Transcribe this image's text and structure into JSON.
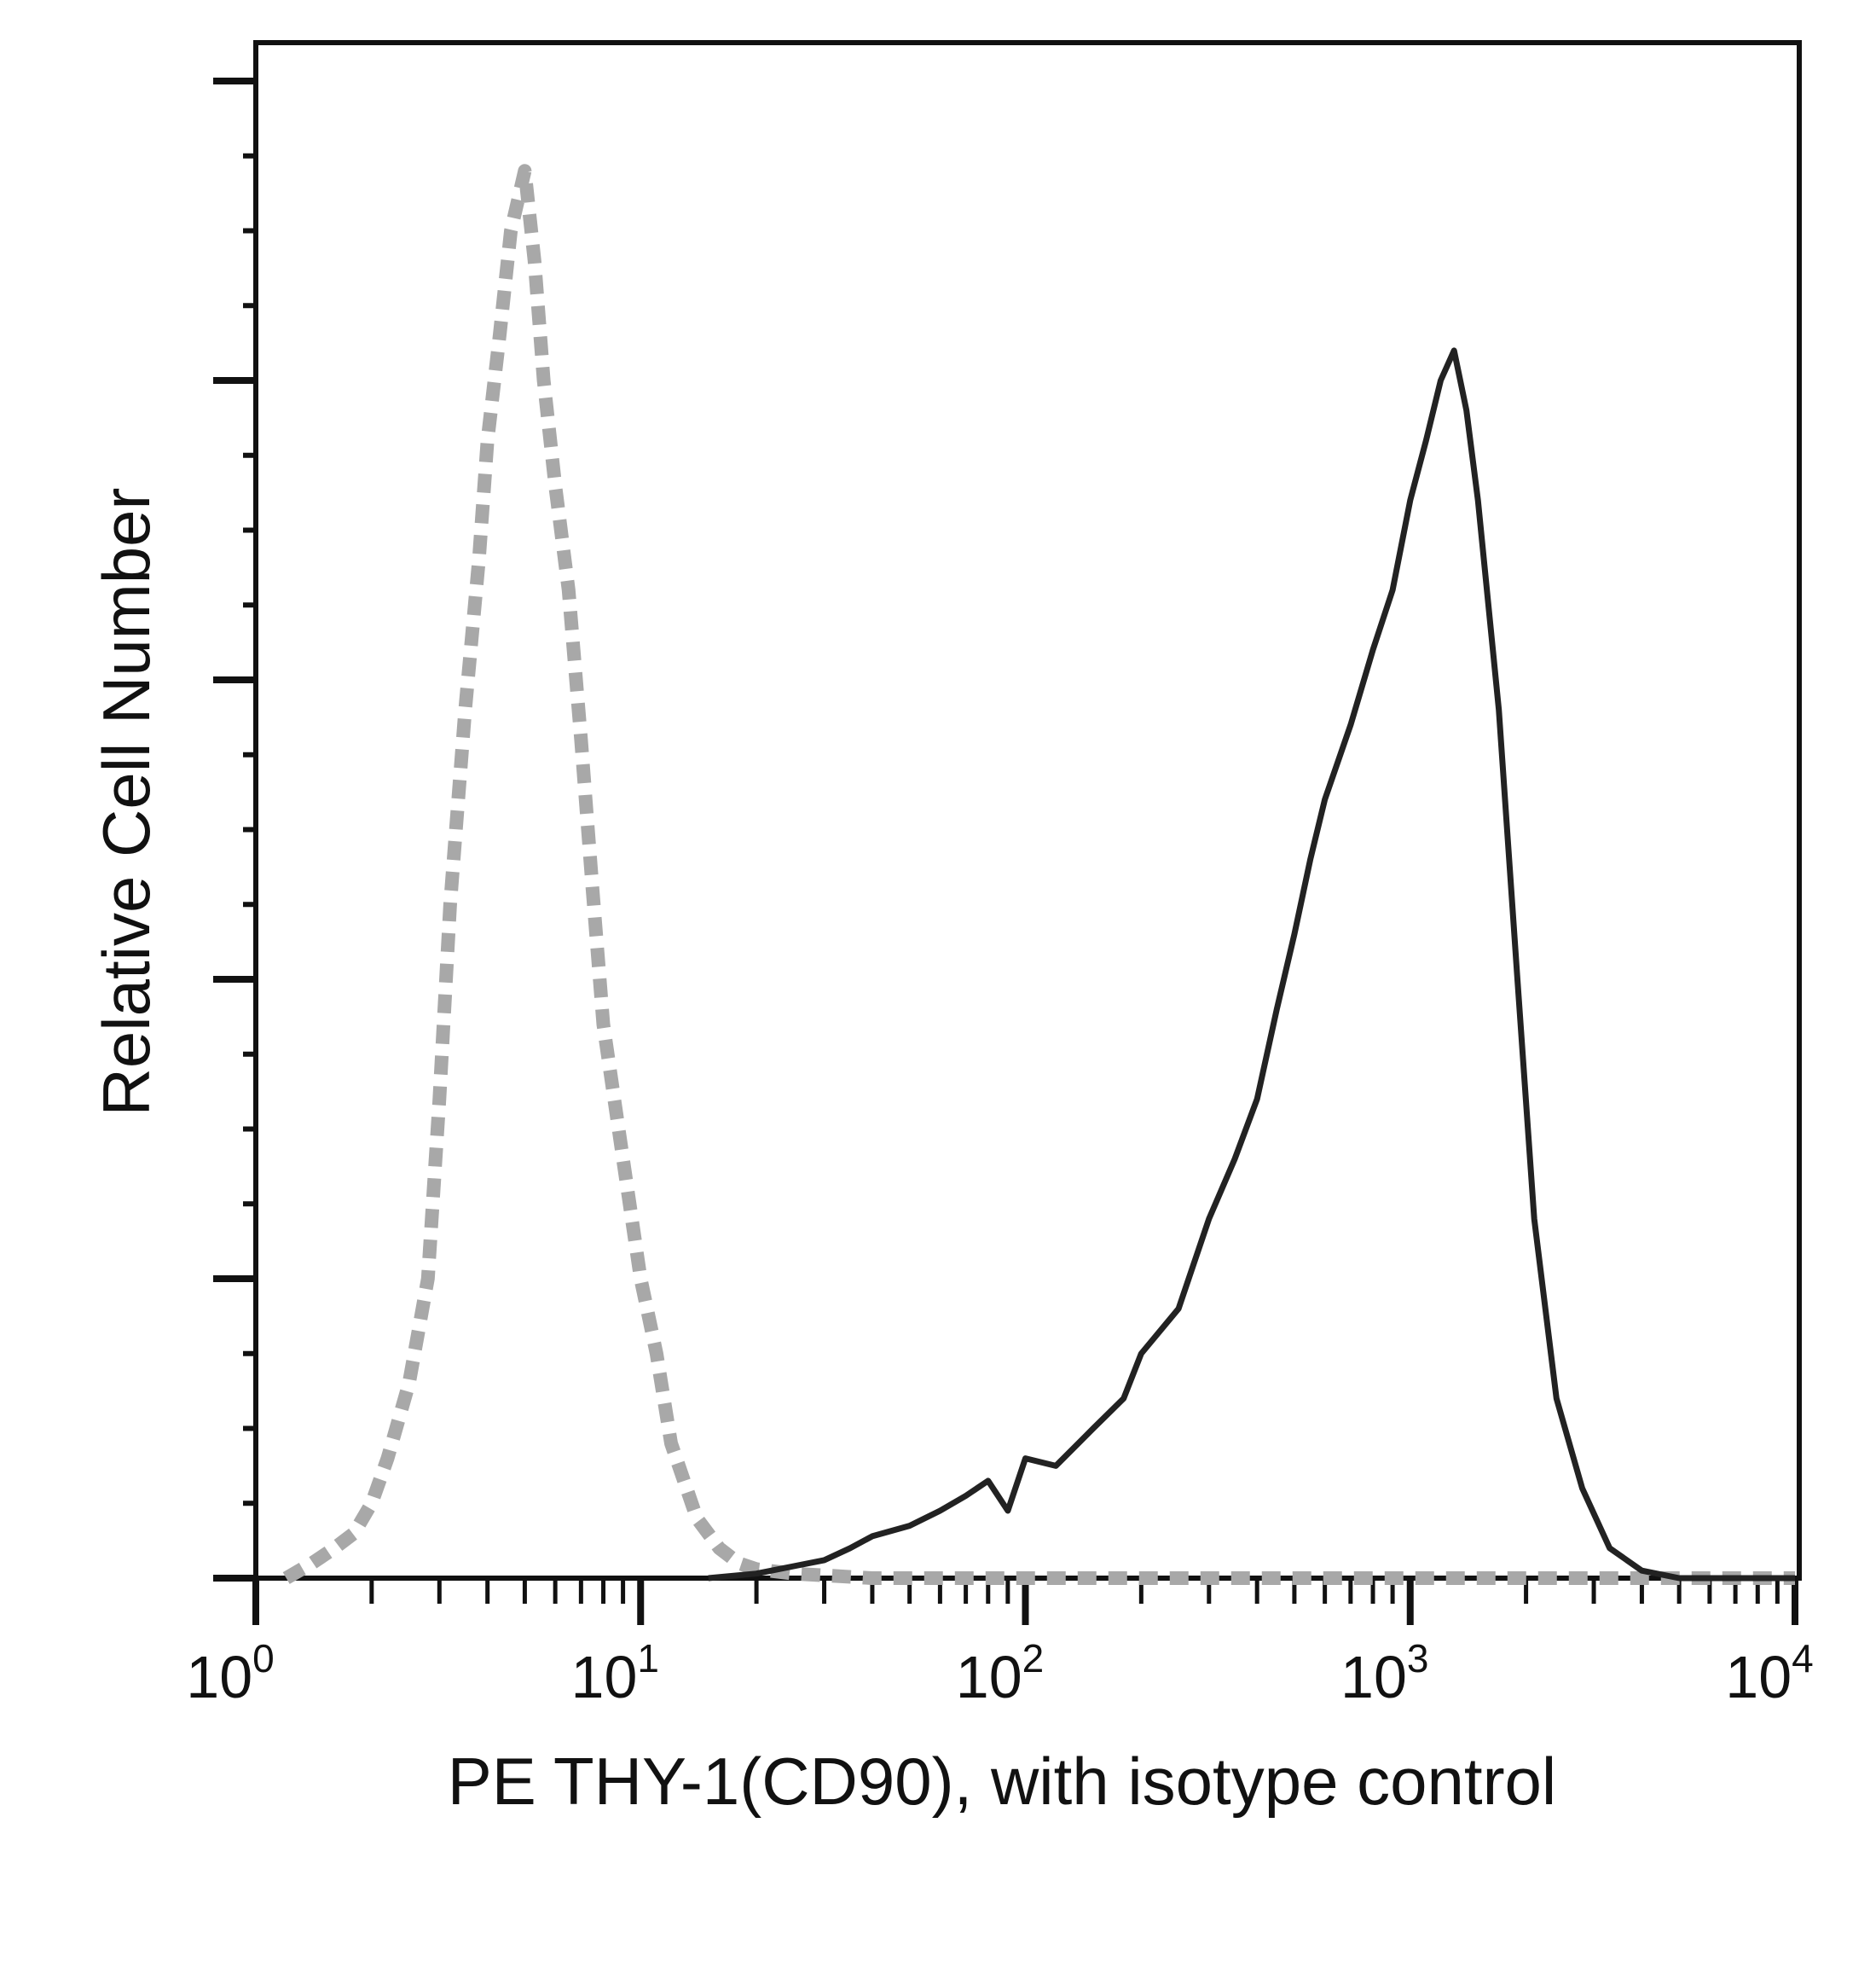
{
  "chart_data": {
    "type": "line",
    "xlabel": "PE THY-1(CD90), with isotype control",
    "ylabel": "Relative Cell Number",
    "x_scale": "log",
    "xlim": [
      1,
      10000
    ],
    "ylim": [
      0,
      100
    ],
    "x_tick_labels": [
      {
        "value": 1,
        "base": "10",
        "exp": "0"
      },
      {
        "value": 10,
        "base": "10",
        "exp": "1"
      },
      {
        "value": 100,
        "base": "10",
        "exp": "2"
      },
      {
        "value": 1000,
        "base": "10",
        "exp": "3"
      },
      {
        "value": 10000,
        "base": "10",
        "exp": "4"
      }
    ],
    "grid": false,
    "series": [
      {
        "style": "dashed",
        "color": "#a8a8a8",
        "x": [
          1.2,
          1.4,
          1.6,
          1.8,
          2.0,
          2.2,
          2.5,
          2.8,
          3.0,
          3.2,
          3.5,
          3.8,
          4.0,
          4.3,
          4.6,
          5.0,
          5.3,
          5.6,
          6.0,
          6.5,
          7.0,
          7.5,
          8.0,
          9.0,
          10,
          11,
          12,
          14,
          16,
          18,
          20,
          25,
          40,
          100,
          1000,
          10000
        ],
        "y": [
          0,
          1,
          2,
          3,
          5,
          8,
          13,
          20,
          32,
          45,
          58,
          68,
          76,
          83,
          90,
          94,
          88,
          80,
          73,
          66,
          56,
          46,
          37,
          28,
          20,
          15,
          9,
          4,
          2,
          1,
          0.6,
          0.3,
          0,
          0,
          0,
          0
        ]
      },
      {
        "style": "solid",
        "color": "#222222",
        "x": [
          15,
          20,
          25,
          30,
          35,
          40,
          50,
          60,
          70,
          80,
          90,
          100,
          120,
          150,
          180,
          200,
          250,
          300,
          350,
          400,
          450,
          500,
          550,
          600,
          700,
          800,
          900,
          1000,
          1100,
          1200,
          1300,
          1400,
          1500,
          1700,
          1900,
          2100,
          2400,
          2800,
          3300,
          4000,
          5000,
          7000,
          10000
        ],
        "y": [
          0,
          0.3,
          0.8,
          1.2,
          2,
          2.8,
          3.5,
          4.5,
          5.5,
          6.5,
          4.5,
          8,
          7.5,
          10,
          12,
          15,
          18,
          24,
          28,
          32,
          38,
          43,
          48,
          52,
          57,
          62,
          66,
          72,
          76,
          80,
          82,
          78,
          72,
          58,
          40,
          24,
          12,
          6,
          2,
          0.5,
          0,
          0,
          0
        ]
      }
    ]
  }
}
